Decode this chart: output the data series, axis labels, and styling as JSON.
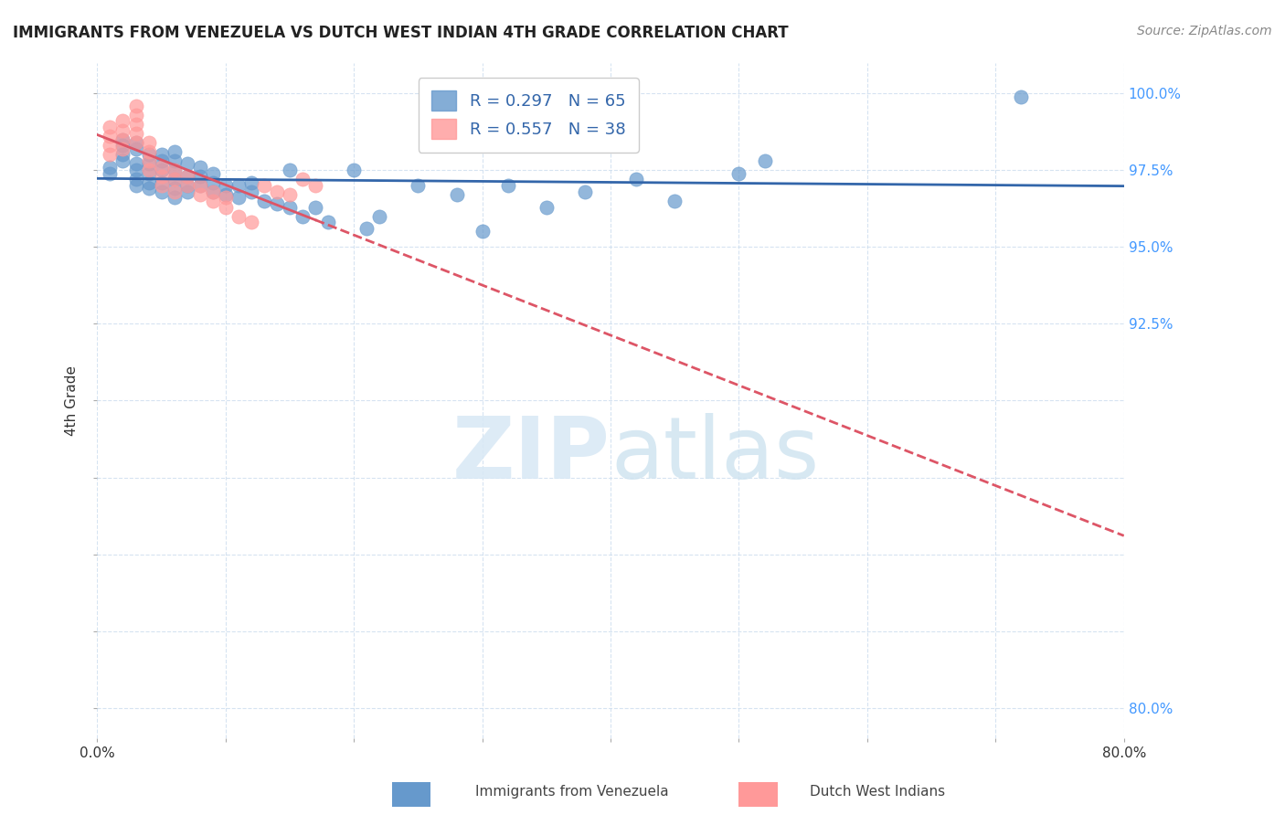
{
  "title": "IMMIGRANTS FROM VENEZUELA VS DUTCH WEST INDIAN 4TH GRADE CORRELATION CHART",
  "source": "Source: ZipAtlas.com",
  "ylabel": "4th Grade",
  "xlabel": "",
  "xlim": [
    0.0,
    0.8
  ],
  "ylim": [
    0.79,
    1.01
  ],
  "yticks": [
    0.8,
    0.825,
    0.85,
    0.875,
    0.9,
    0.925,
    0.95,
    0.975,
    1.0
  ],
  "ytick_labels_right": [
    "80.0%",
    "",
    "",
    "",
    "",
    "92.5%",
    "95.0%",
    "97.5%",
    "100.0%"
  ],
  "xticks": [
    0.0,
    0.1,
    0.2,
    0.3,
    0.4,
    0.5,
    0.6,
    0.7,
    0.8
  ],
  "xtick_labels": [
    "0.0%",
    "",
    "",
    "",
    "",
    "",
    "",
    "",
    "80.0%"
  ],
  "blue_color": "#6699CC",
  "pink_color": "#FF9999",
  "trend_blue": "#3366AA",
  "trend_pink": "#DD5566",
  "legend_blue_r": "R = 0.297",
  "legend_blue_n": "N = 65",
  "legend_pink_r": "R = 0.557",
  "legend_pink_n": "N = 38",
  "watermark": "ZIPatlas",
  "blue_scatter_x": [
    0.01,
    0.01,
    0.02,
    0.02,
    0.02,
    0.02,
    0.03,
    0.03,
    0.03,
    0.03,
    0.03,
    0.03,
    0.04,
    0.04,
    0.04,
    0.04,
    0.04,
    0.05,
    0.05,
    0.05,
    0.05,
    0.05,
    0.06,
    0.06,
    0.06,
    0.06,
    0.06,
    0.06,
    0.07,
    0.07,
    0.07,
    0.07,
    0.08,
    0.08,
    0.08,
    0.09,
    0.09,
    0.09,
    0.1,
    0.1,
    0.11,
    0.11,
    0.12,
    0.12,
    0.13,
    0.14,
    0.15,
    0.15,
    0.16,
    0.17,
    0.18,
    0.2,
    0.21,
    0.22,
    0.25,
    0.28,
    0.3,
    0.32,
    0.35,
    0.38,
    0.42,
    0.45,
    0.5,
    0.52,
    0.72
  ],
  "blue_scatter_y": [
    0.974,
    0.976,
    0.978,
    0.98,
    0.983,
    0.985,
    0.97,
    0.972,
    0.975,
    0.977,
    0.982,
    0.984,
    0.969,
    0.971,
    0.974,
    0.977,
    0.98,
    0.968,
    0.971,
    0.975,
    0.978,
    0.98,
    0.966,
    0.969,
    0.972,
    0.975,
    0.978,
    0.981,
    0.968,
    0.97,
    0.973,
    0.977,
    0.97,
    0.973,
    0.976,
    0.968,
    0.971,
    0.974,
    0.967,
    0.97,
    0.966,
    0.97,
    0.968,
    0.971,
    0.965,
    0.964,
    0.963,
    0.975,
    0.96,
    0.963,
    0.958,
    0.975,
    0.956,
    0.96,
    0.97,
    0.967,
    0.955,
    0.97,
    0.963,
    0.968,
    0.972,
    0.965,
    0.974,
    0.978,
    0.999
  ],
  "pink_scatter_x": [
    0.01,
    0.01,
    0.01,
    0.01,
    0.02,
    0.02,
    0.02,
    0.02,
    0.03,
    0.03,
    0.03,
    0.03,
    0.03,
    0.04,
    0.04,
    0.04,
    0.04,
    0.05,
    0.05,
    0.05,
    0.06,
    0.06,
    0.06,
    0.07,
    0.07,
    0.08,
    0.08,
    0.09,
    0.09,
    0.1,
    0.1,
    0.11,
    0.12,
    0.13,
    0.14,
    0.15,
    0.16,
    0.17
  ],
  "pink_scatter_y": [
    0.98,
    0.983,
    0.986,
    0.989,
    0.982,
    0.985,
    0.988,
    0.991,
    0.984,
    0.987,
    0.99,
    0.993,
    0.996,
    0.975,
    0.978,
    0.981,
    0.984,
    0.97,
    0.973,
    0.976,
    0.968,
    0.972,
    0.975,
    0.97,
    0.973,
    0.967,
    0.97,
    0.965,
    0.968,
    0.963,
    0.966,
    0.96,
    0.958,
    0.97,
    0.968,
    0.967,
    0.972,
    0.97
  ]
}
